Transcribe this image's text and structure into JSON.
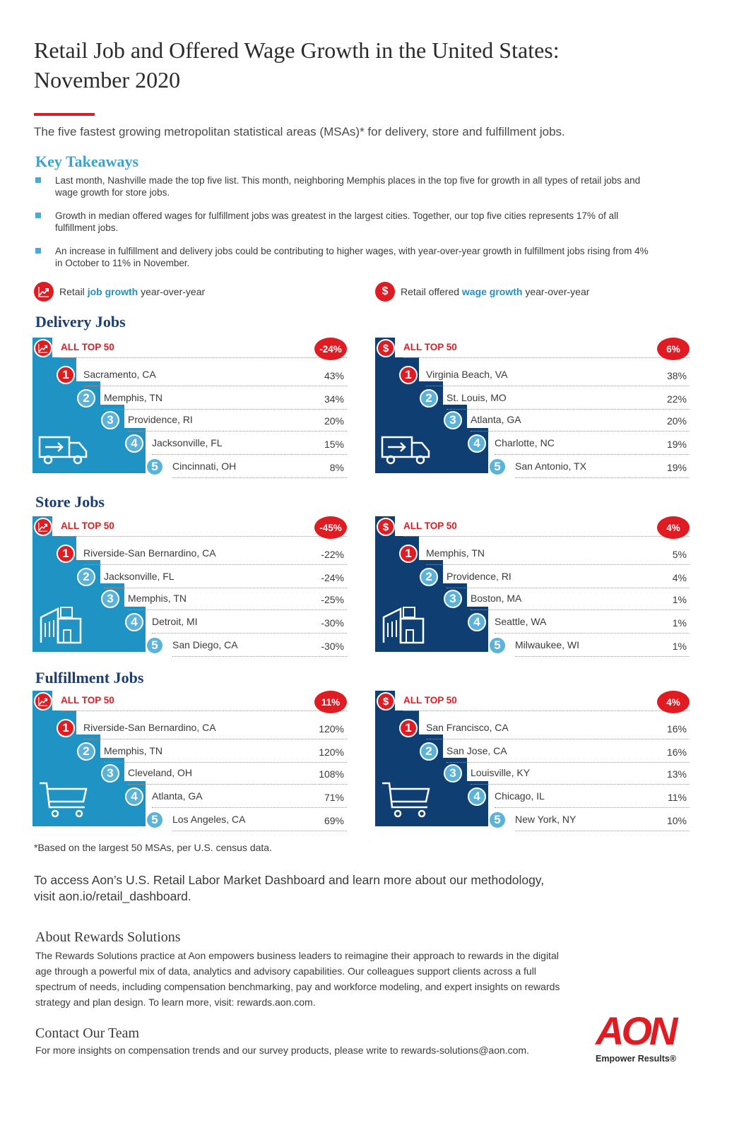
{
  "title_line1": "Retail Job and Offered Wage Growth in the United States:",
  "title_line2": "November 2020",
  "subtitle": "The five fastest growing metropolitan statistical areas (MSAs)* for delivery, store and fulfillment jobs.",
  "key_takeaways": {
    "heading": "Key Takeaways",
    "items": [
      "Last month, Nashville made the top five list. This month, neighboring Memphis places in the top five for growth in all types of retail jobs and wage growth for store jobs.",
      "Growth in median offered wages for fulfillment jobs was greatest in the largest cities. Together, our top five cities represents 17% of all fulfillment jobs.",
      "An increase in fulfillment and delivery jobs could be contributing to higher wages, with year-over-year growth in fulfillment jobs rising from 4% in October to 11% in November."
    ]
  },
  "legend": {
    "job": {
      "pre": "Retail ",
      "bold": "job growth",
      "post": " year-over-year",
      "icon": "trend-up-icon"
    },
    "wage": {
      "pre": "Retail offered ",
      "bold": "wage growth",
      "post": " year-over-year",
      "icon": "dollar-icon"
    }
  },
  "all_top_label": "ALL TOP 50",
  "colors": {
    "red": "#e11b22",
    "job_panel": "#1f93c4",
    "wage_panel": "#0f3f72",
    "circle_blue": "#5bb3d9",
    "title_blue": "#1b3f72"
  },
  "sections": [
    {
      "title": "Delivery Jobs",
      "icon": "delivery-truck-icon",
      "job": {
        "total": "-24%",
        "rows": [
          {
            "rank": "1",
            "city": "Sacramento, CA",
            "value": "43%"
          },
          {
            "rank": "2",
            "city": "Memphis, TN",
            "value": "34%"
          },
          {
            "rank": "3",
            "city": "Providence, RI",
            "value": "20%"
          },
          {
            "rank": "4",
            "city": "Jacksonville, FL",
            "value": "15%"
          },
          {
            "rank": "5",
            "city": "Cincinnati, OH",
            "value": "8%"
          }
        ]
      },
      "wage": {
        "total": "6%",
        "rows": [
          {
            "rank": "1",
            "city": "Virginia Beach, VA",
            "value": "38%"
          },
          {
            "rank": "2",
            "city": "St. Louis, MO",
            "value": "22%"
          },
          {
            "rank": "3",
            "city": "Atlanta, GA",
            "value": "20%"
          },
          {
            "rank": "4",
            "city": "Charlotte, NC",
            "value": "19%"
          },
          {
            "rank": "5",
            "city": "San Antonio, TX",
            "value": "19%"
          }
        ]
      }
    },
    {
      "title": "Store Jobs",
      "icon": "store-building-icon",
      "job": {
        "total": "-45%",
        "rows": [
          {
            "rank": "1",
            "city": "Riverside-San Bernardino, CA",
            "value": "-22%"
          },
          {
            "rank": "2",
            "city": "Jacksonville, FL",
            "value": "-24%"
          },
          {
            "rank": "3",
            "city": "Memphis, TN",
            "value": "-25%"
          },
          {
            "rank": "4",
            "city": "Detroit, MI",
            "value": "-30%"
          },
          {
            "rank": "5",
            "city": "San Diego, CA",
            "value": "-30%"
          }
        ]
      },
      "wage": {
        "total": "4%",
        "rows": [
          {
            "rank": "1",
            "city": "Memphis, TN",
            "value": "5%"
          },
          {
            "rank": "2",
            "city": "Providence, RI",
            "value": "4%"
          },
          {
            "rank": "3",
            "city": "Boston, MA",
            "value": "1%"
          },
          {
            "rank": "4",
            "city": "Seattle, WA",
            "value": "1%"
          },
          {
            "rank": "5",
            "city": "Milwaukee, WI",
            "value": "1%"
          }
        ]
      }
    },
    {
      "title": "Fulfillment Jobs",
      "icon": "shopping-cart-icon",
      "job": {
        "total": "11%",
        "rows": [
          {
            "rank": "1",
            "city": "Riverside-San Bernardino, CA",
            "value": "120%"
          },
          {
            "rank": "2",
            "city": "Memphis, TN",
            "value": "120%"
          },
          {
            "rank": "3",
            "city": "Cleveland, OH",
            "value": "108%"
          },
          {
            "rank": "4",
            "city": "Atlanta, GA",
            "value": "71%"
          },
          {
            "rank": "5",
            "city": "Los Angeles, CA",
            "value": "69%"
          }
        ]
      },
      "wage": {
        "total": "4%",
        "rows": [
          {
            "rank": "1",
            "city": "San Francisco, CA",
            "value": "16%"
          },
          {
            "rank": "2",
            "city": "San Jose, CA",
            "value": "16%"
          },
          {
            "rank": "3",
            "city": "Louisville, KY",
            "value": "13%"
          },
          {
            "rank": "4",
            "city": "Chicago, IL",
            "value": "11%"
          },
          {
            "rank": "5",
            "city": "New York, NY",
            "value": "10%"
          }
        ]
      }
    }
  ],
  "footnote": "*Based on the largest 50 MSAs, per U.S. census data.",
  "access_line1": "To access Aon’s U.S. Retail Labor Market Dashboard and learn more about our methodology,",
  "access_line2": "visit aon.io/retail_dashboard.",
  "about": {
    "heading": "About Rewards Solutions",
    "body": "The Rewards Solutions practice at Aon empowers business leaders to reimagine their approach to rewards in the digital age through a powerful mix of data, analytics and advisory capabilities. Our colleagues support clients across a full spectrum of needs, including compensation benchmarking, pay and workforce modeling, and expert insights on rewards strategy and plan design. To learn more, visit: rewards.aon.com."
  },
  "contact": {
    "heading": "Contact Our Team",
    "body": "For more insights on compensation trends and our survey products, please write to rewards-solutions@aon.com."
  },
  "logo": {
    "word": "AON",
    "tagline": "Empower Results®"
  }
}
